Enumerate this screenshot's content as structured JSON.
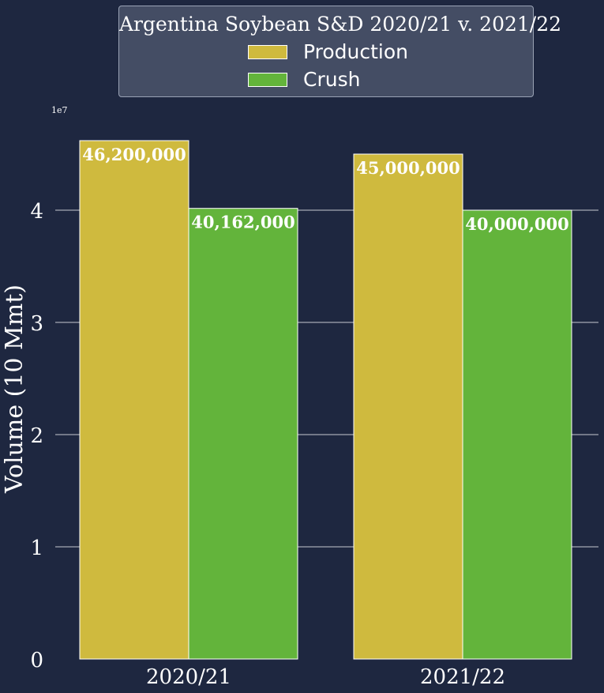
{
  "chart_data": {
    "type": "bar",
    "title": "Argentina Soybean S&D 2020/21 v. 2021/22",
    "ylabel": "Volume (10 Mmt)",
    "xlabel": "",
    "offset_text": "1e7",
    "categories": [
      "2020/21",
      "2021/22"
    ],
    "series": [
      {
        "name": "Production",
        "values": [
          46200000,
          45000000
        ],
        "labels": [
          "46,200,000",
          "45,000,000"
        ],
        "color": "#cfba3e"
      },
      {
        "name": "Crush",
        "values": [
          40162000,
          40000000
        ],
        "labels": [
          "40,162,000",
          "40,000,000"
        ],
        "color": "#63b43b"
      }
    ],
    "yticks": [
      0,
      10000000,
      20000000,
      30000000,
      40000000
    ],
    "ytick_labels": [
      "0",
      "1",
      "2",
      "3",
      "4"
    ],
    "ylim": [
      0,
      47000000
    ],
    "grid": "horizontal",
    "legend_placement": "top-center",
    "colors": {
      "background": "#1e2740",
      "grid": "#ffffff",
      "text": "#ffffff"
    }
  }
}
